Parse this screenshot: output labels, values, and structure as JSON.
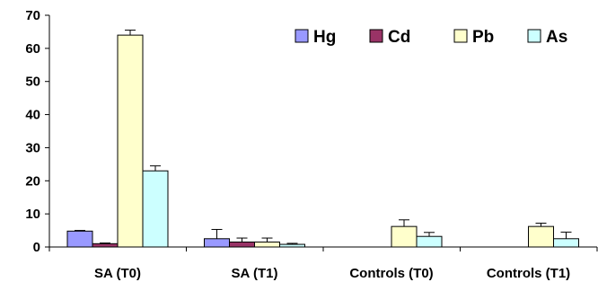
{
  "chart_data": {
    "type": "bar",
    "categories": [
      "SA (T0)",
      "SA (T1)",
      "Controls (T0)",
      "Controls (T1)"
    ],
    "series": [
      {
        "name": "Hg",
        "color": "#9999ff",
        "values": [
          4.8,
          2.5,
          0,
          0
        ],
        "errors": [
          0.2,
          2.8,
          0,
          0
        ]
      },
      {
        "name": "Cd",
        "color": "#993366",
        "values": [
          1.0,
          1.5,
          0,
          0
        ],
        "errors": [
          0.2,
          1.2,
          0,
          0
        ]
      },
      {
        "name": "Pb",
        "color": "#ffffcc",
        "values": [
          64.0,
          1.5,
          6.2,
          6.2
        ],
        "errors": [
          1.5,
          1.2,
          2.0,
          1.0
        ]
      },
      {
        "name": "As",
        "color": "#ccffff",
        "values": [
          23.0,
          0.8,
          3.2,
          2.5
        ],
        "errors": [
          1.5,
          0.3,
          1.2,
          2.0
        ]
      }
    ],
    "yticks": [
      "0",
      "10",
      "20",
      "30",
      "40",
      "50",
      "60",
      "70"
    ],
    "ylim": [
      0,
      70
    ],
    "grid": false,
    "legend_position": "top-right"
  }
}
